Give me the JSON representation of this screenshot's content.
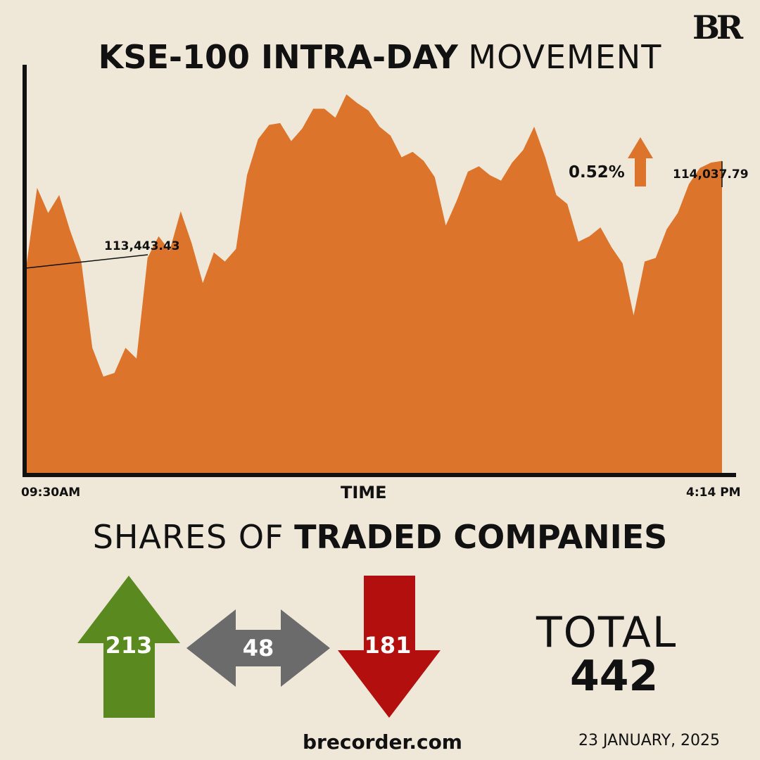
{
  "brand": {
    "logo_text": "BR",
    "site": "brecorder.com",
    "date": "23 JANUARY, 2025"
  },
  "title": {
    "bold": "KSE-100 INTRA-DAY",
    "light": "MOVEMENT"
  },
  "change": {
    "percent_label": "0.52%",
    "direction": "up"
  },
  "colors": {
    "area": "#dd742b",
    "up": "#5a8a1f",
    "neutral": "#6b6b6b",
    "down": "#b30f0f",
    "background": "#efe7d8"
  },
  "chart_data": {
    "type": "area",
    "title": "KSE-100 INTRA-DAY MOVEMENT",
    "xlabel": "TIME",
    "ylabel": "",
    "x_start_label": "09:30AM",
    "x_end_label": "4:14 PM",
    "open_value": 113443.43,
    "open_label": "113,443.43",
    "close_value": 114037.79,
    "close_label": "114,037.79",
    "ylim": [
      112300,
      114700
    ],
    "series": [
      {
        "values": [
          113443,
          113890,
          113750,
          113850,
          113650,
          113480,
          113000,
          112840,
          112860,
          113000,
          112940,
          113500,
          113620,
          113540,
          113760,
          113580,
          113360,
          113530,
          113480,
          113550,
          113960,
          114160,
          114240,
          114250,
          114150,
          114220,
          114330,
          114330,
          114280,
          114410,
          114360,
          114320,
          114230,
          114180,
          114060,
          114090,
          114040,
          113950,
          113680,
          113820,
          113980,
          114010,
          113960,
          113930,
          114030,
          114100,
          114230,
          114060,
          113850,
          113800,
          113590,
          113620,
          113670,
          113560,
          113470,
          113180,
          113480,
          113500,
          113660,
          113750,
          113910,
          114000,
          114030,
          114040
        ]
      }
    ]
  },
  "shares": {
    "subtitle_light": "SHARES OF",
    "subtitle_bold": "TRADED COMPANIES",
    "advanced": "213",
    "unchanged": "48",
    "declined": "181",
    "total_label": "TOTAL",
    "total_value": "442"
  }
}
